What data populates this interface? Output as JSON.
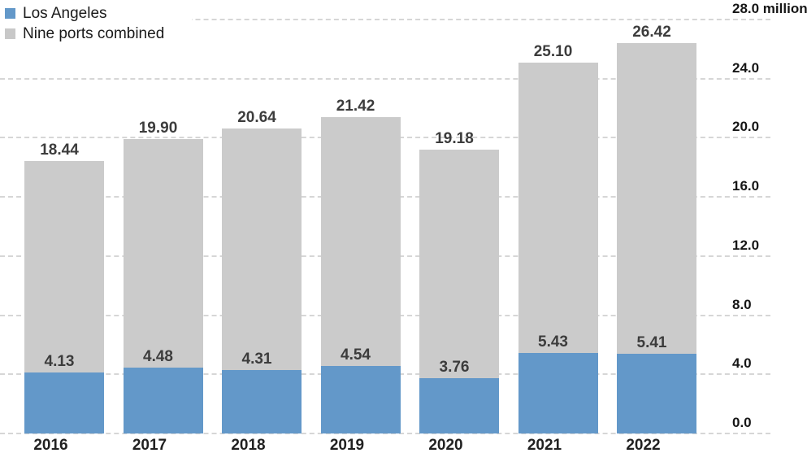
{
  "legend": {
    "items": [
      {
        "label": "Los Angeles",
        "color": "#6398c9"
      },
      {
        "label": "Nine ports combined",
        "color": "#c8c8c8"
      }
    ]
  },
  "chart_data": {
    "type": "bar",
    "stacked": true,
    "title": "",
    "categories": [
      "2016",
      "2017",
      "2018",
      "2019",
      "2020",
      "2021",
      "2022"
    ],
    "series": [
      {
        "name": "Los Angeles",
        "color": "#6398c9",
        "values": [
          4.13,
          4.48,
          4.31,
          4.54,
          3.76,
          5.43,
          5.41
        ]
      },
      {
        "name": "Nine ports combined",
        "color": "#cbcbcb",
        "plotted_as": "total-bar-height",
        "values": [
          18.44,
          19.9,
          20.64,
          21.42,
          19.18,
          25.1,
          26.42
        ]
      }
    ],
    "ylim": [
      0,
      28
    ],
    "yticks": [
      0,
      4,
      8,
      12,
      16,
      20,
      24,
      28
    ],
    "ytick_labels": [
      "0.0",
      "4.0",
      "8.0",
      "12.0",
      "16.0",
      "20.0",
      "24.0",
      "28.0 million"
    ],
    "y_axis_side": "right",
    "grid": "dashed-horizontal",
    "legend_position": "top-left",
    "value_labels": "2-decimal",
    "colors": {
      "grid": "#d6d6d6",
      "value_label": "#3c3c3c",
      "axis_label": "#161616",
      "x_label": "#212121"
    }
  }
}
